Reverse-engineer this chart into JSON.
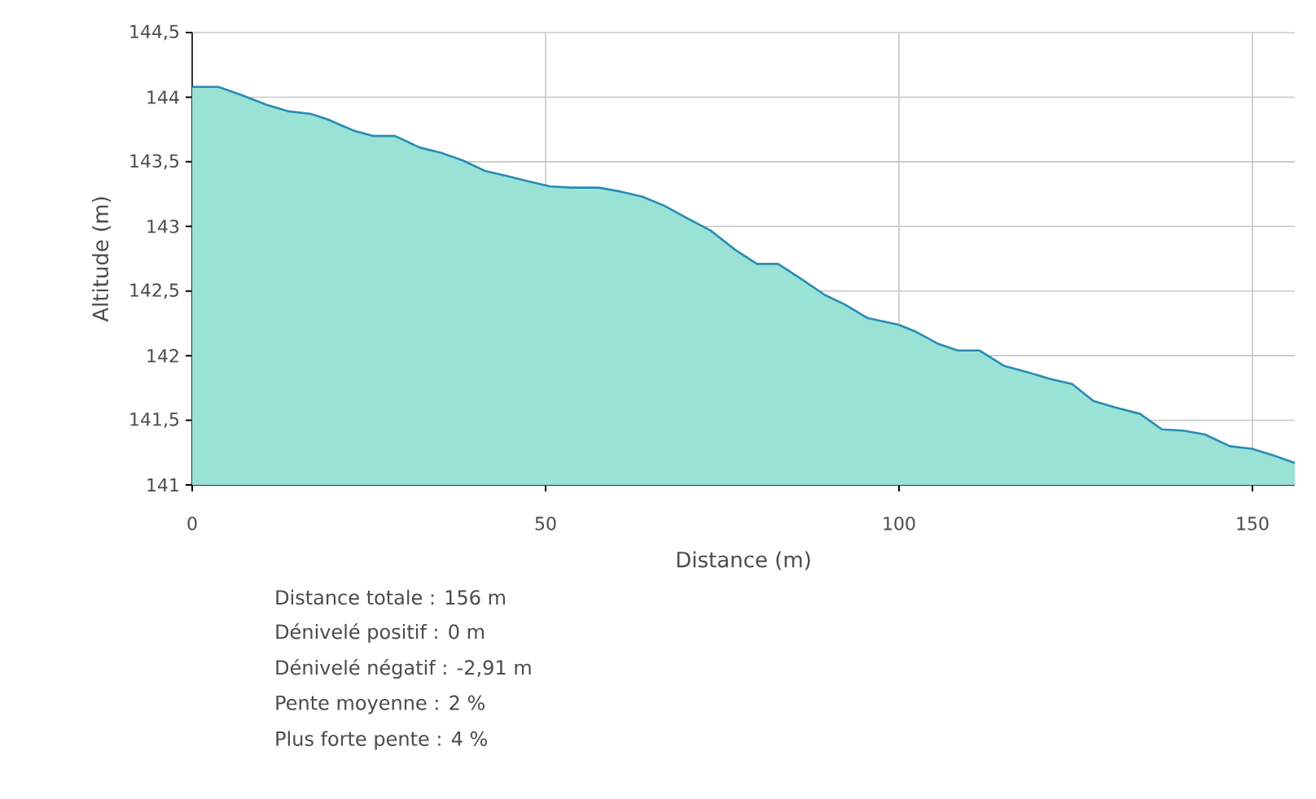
{
  "chart_data": {
    "type": "area",
    "xlabel": "Distance (m)",
    "ylabel": "Altitude (m)",
    "series": [
      {
        "color": "#99e2d5",
        "x": [
          0,
          3.7,
          6.8,
          10.6,
          13.7,
          16.8,
          19.1,
          22.9,
          25.6,
          28.7,
          32.2,
          35.2,
          38.3,
          41.4,
          44.5,
          47.5,
          50.6,
          53.7,
          57.5,
          60.6,
          63.7,
          66.8,
          69.8,
          73.3,
          76.8,
          79.9,
          82.9,
          86.0,
          89.5,
          92.2,
          95.6,
          99.9,
          102.2,
          105.6,
          108.3,
          111.4,
          114.9,
          118.3,
          121.4,
          124.5,
          127.5,
          130.6,
          134.1,
          137.2,
          140.2,
          143.3,
          146.8,
          149.9,
          152.9,
          156
        ],
        "values": [
          144.08,
          144.08,
          144.02,
          143.94,
          143.89,
          143.87,
          143.83,
          143.74,
          143.7,
          143.7,
          143.61,
          143.57,
          143.51,
          143.43,
          143.39,
          143.35,
          143.31,
          143.3,
          143.3,
          143.27,
          143.23,
          143.16,
          143.07,
          142.97,
          142.82,
          142.71,
          142.71,
          142.6,
          142.47,
          142.4,
          142.29,
          142.24,
          142.19,
          142.09,
          142.04,
          142.04,
          141.92,
          141.87,
          141.82,
          141.78,
          141.65,
          141.6,
          141.55,
          141.43,
          141.42,
          141.39,
          141.3,
          141.28,
          141.23,
          141.17
        ]
      }
    ],
    "xlim": [
      0,
      156
    ],
    "xticks": [
      0,
      50,
      100,
      150
    ],
    "ylim": [
      141,
      144.5
    ],
    "yticks": [
      141,
      {
        "value": 141.5,
        "label": "141,5"
      },
      142,
      {
        "value": 142.5,
        "label": "142,5"
      },
      143,
      {
        "value": 143.5,
        "label": "143,5"
      },
      144,
      {
        "value": 144.5,
        "label": "144,5"
      }
    ],
    "grid": true,
    "annotations": [
      "Distance totale : 156 m",
      "Dénivelé positif : 0 m",
      "Dénivelé négatif : -2,91 m",
      "Pente moyenne : 2 %",
      "Plus forte pente : 4 %"
    ]
  }
}
